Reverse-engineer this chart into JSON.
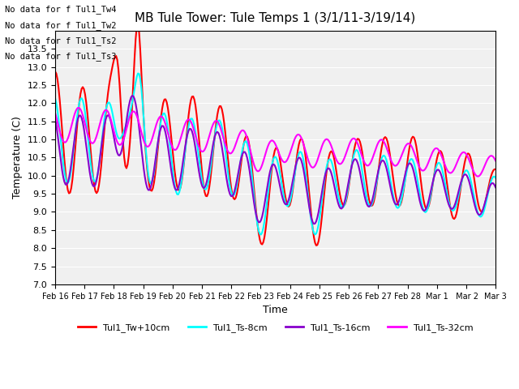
{
  "title": "MB Tule Tower: Tule Temps 1 (3/1/11-3/19/14)",
  "xlabel": "Time",
  "ylabel": "Temperature (C)",
  "ylim": [
    7.0,
    14.0
  ],
  "yticks": [
    7.0,
    7.5,
    8.0,
    8.5,
    9.0,
    9.5,
    10.0,
    10.5,
    11.0,
    11.5,
    12.0,
    12.5,
    13.0,
    13.5
  ],
  "xtick_labels": [
    "Feb 16",
    "Feb 17",
    "Feb 18",
    "Feb 19",
    "Feb 20",
    "Feb 21",
    "Feb 22",
    "Feb 23",
    "Feb 24",
    "Feb 25",
    "Feb 26",
    "Feb 27",
    "Feb 28",
    "Mar 1",
    " Mar 2",
    "Mar 3"
  ],
  "colors": {
    "Tw": "#ff0000",
    "Ts8": "#00ffff",
    "Ts16": "#8800cc",
    "Ts32": "#ff00ff"
  },
  "line_widths": {
    "Tw": 1.5,
    "Ts8": 1.5,
    "Ts16": 1.5,
    "Ts32": 1.5
  },
  "legend_labels": [
    "Tul1_Tw+10cm",
    "Tul1_Ts-8cm",
    "Tul1_Ts-16cm",
    "Tul1_Ts-32cm"
  ],
  "no_data_texts": [
    "No data for f Tul1_Tw4",
    "No data for f Tul1_Tw2",
    "No data for f Tul1_Ts2",
    "No data for f Tul1_Ts3"
  ],
  "tooltip_text": "MB Tule",
  "bg_color": "#e8e8e8",
  "plot_bg": "#f0f0f0"
}
